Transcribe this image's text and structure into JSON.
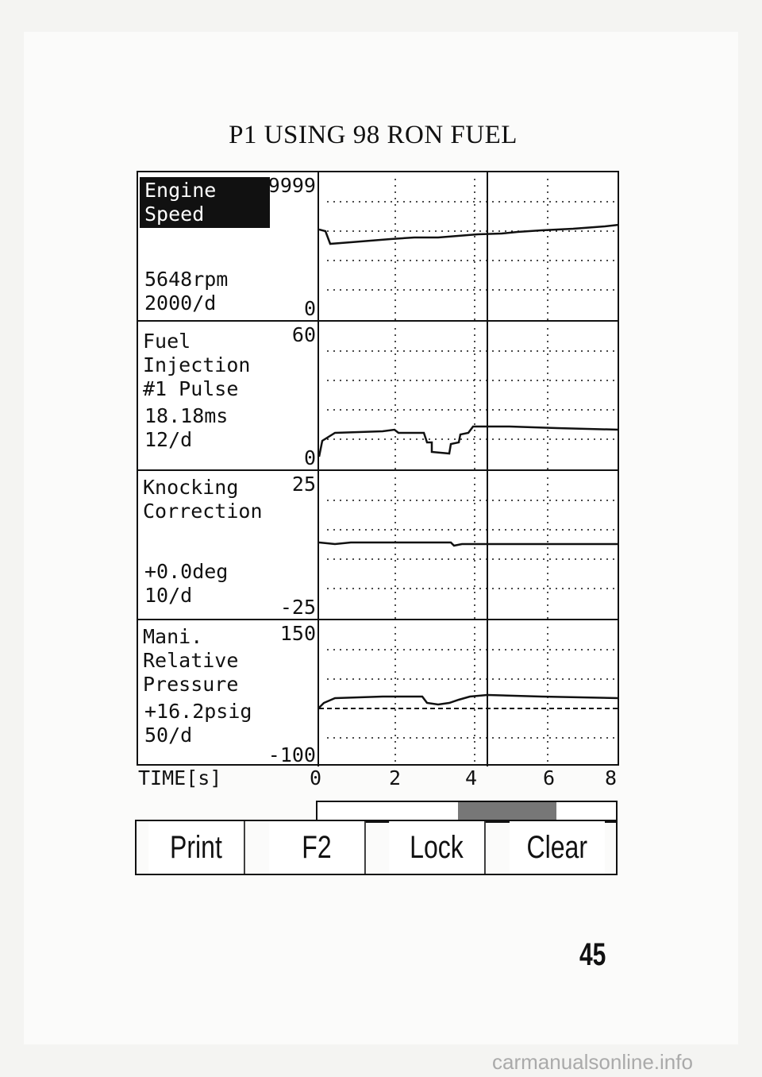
{
  "title": "P1 USING 98 RON FUEL",
  "panels": [
    {
      "label_lines": [
        "Engine",
        "Speed"
      ],
      "highlight": true,
      "max": "9999",
      "min": "0",
      "value": "5648rpm",
      "scale": "2000/d"
    },
    {
      "label_lines": [
        "Fuel",
        "Injection",
        "#1 Pulse"
      ],
      "highlight": false,
      "max": "60",
      "min": "0",
      "value": "18.18ms",
      "scale": "12/d"
    },
    {
      "label_lines": [
        "Knocking",
        "Correction"
      ],
      "highlight": false,
      "max": "25",
      "min": "-25",
      "value": "+0.0deg",
      "scale": "10/d"
    },
    {
      "label_lines": [
        "Mani.",
        "Relative",
        "Pressure"
      ],
      "highlight": false,
      "max": "150",
      "min": "-100",
      "value": "+16.2psig",
      "scale": "50/d"
    }
  ],
  "time_axis": {
    "label": "TIME[s]",
    "ticks": [
      "0",
      "2",
      "4",
      "6",
      "8"
    ]
  },
  "scroll_bar": {
    "visible_start_fraction": 0.47,
    "visible_end_fraction": 0.8
  },
  "buttons": {
    "print": "Print",
    "f2": "F2",
    "lock": "Lock",
    "clear": "Clear"
  },
  "page_number": "45",
  "watermark": "carmanualsonline.info",
  "colors": {
    "screen_bg": "#ffffff",
    "ink": "#111111",
    "highlight_bg": "#111111",
    "scroll_fill": "#777777"
  }
}
